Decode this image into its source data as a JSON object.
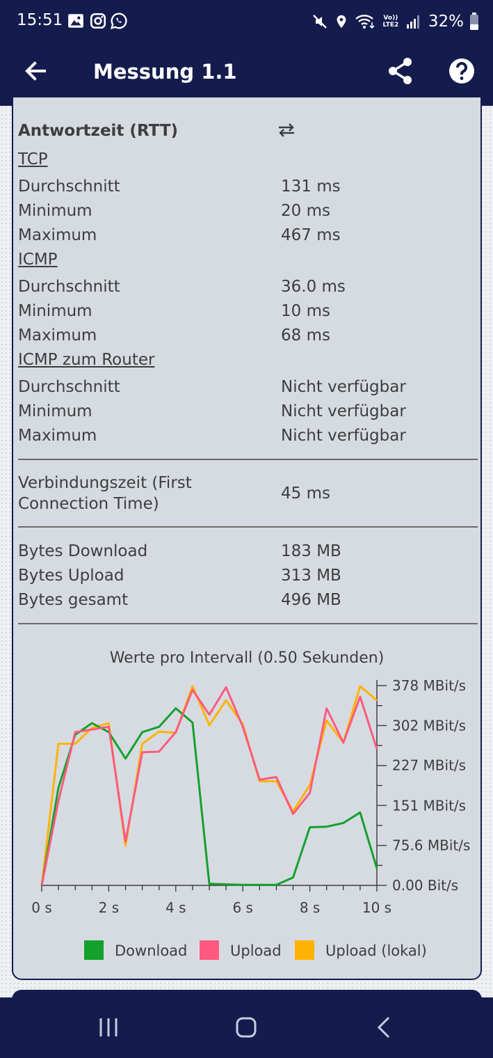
{
  "status_bar": {
    "time": "15:51",
    "volte_label": "Vo)) LTE2",
    "battery": "32%"
  },
  "app_bar": {
    "title": "Messung 1.1",
    "icons": [
      "back-arrow-icon",
      "share-icon",
      "help-icon"
    ]
  },
  "rtt": {
    "heading": "Antwortzeit (RTT)",
    "heading_icon": "swap-arrows-icon",
    "groups": [
      {
        "title": "TCP",
        "rows": [
          {
            "label": "Durchschnitt",
            "value": "131 ms"
          },
          {
            "label": "Minimum",
            "value": "20 ms"
          },
          {
            "label": "Maximum",
            "value": "467 ms"
          }
        ]
      },
      {
        "title": "ICMP",
        "rows": [
          {
            "label": "Durchschnitt",
            "value": "36.0 ms"
          },
          {
            "label": "Minimum",
            "value": "10 ms"
          },
          {
            "label": "Maximum",
            "value": "68 ms"
          }
        ]
      },
      {
        "title": "ICMP zum Router",
        "rows": [
          {
            "label": "Durchschnitt",
            "value": "Nicht verfügbar"
          },
          {
            "label": "Minimum",
            "value": "Nicht verfügbar"
          },
          {
            "label": "Maximum",
            "value": "Nicht verfügbar"
          }
        ]
      }
    ]
  },
  "connection": {
    "label_line1": "Verbindungszeit (First",
    "label_line2": "Connection Time)",
    "value": "45 ms"
  },
  "bytes": [
    {
      "label": "Bytes Download",
      "value": "183 MB"
    },
    {
      "label": "Bytes Upload",
      "value": "313 MB"
    },
    {
      "label": "Bytes gesamt",
      "value": "496 MB"
    }
  ],
  "chart_data": {
    "type": "line",
    "title": "Werte pro Intervall (0.50 Sekunden)",
    "xlim": [
      0,
      10
    ],
    "ylim": [
      0,
      378
    ],
    "x_ticks": [
      0,
      2,
      4,
      6,
      8,
      10
    ],
    "x_tick_labels": [
      "0 s",
      "2 s",
      "4 s",
      "6 s",
      "8 s",
      "10 s"
    ],
    "y_ticks": [
      0,
      75.6,
      151,
      227,
      302,
      378
    ],
    "y_tick_labels": [
      "0.00 Bit/s",
      "75.6 MBit/s",
      "151 MBit/s",
      "227 MBit/s",
      "302 MBit/s",
      "378 MBit/s"
    ],
    "legend_position": "bottom",
    "series": [
      {
        "name": "Download",
        "color": "#14a02c",
        "x": [
          0,
          0.5,
          1,
          1.5,
          2,
          2.5,
          3,
          3.5,
          4,
          4.5,
          5,
          5.5,
          6,
          6.5,
          7,
          7.5,
          8,
          8.5,
          9,
          9.5,
          10
        ],
        "y": [
          0,
          185,
          285,
          307,
          290,
          240,
          290,
          300,
          335,
          308,
          3,
          2,
          1,
          1,
          1,
          15,
          110,
          111,
          118,
          138,
          32
        ]
      },
      {
        "name": "Upload",
        "color": "#ff5a7e",
        "x": [
          0,
          0.5,
          1,
          1.5,
          2,
          2.5,
          3,
          3.5,
          4,
          4.5,
          5,
          5.5,
          6,
          6.5,
          7,
          7.5,
          8,
          8.5,
          9,
          9.5,
          10
        ],
        "y": [
          0,
          160,
          290,
          295,
          300,
          83,
          252,
          253,
          290,
          370,
          323,
          375,
          300,
          200,
          205,
          135,
          175,
          335,
          270,
          357,
          258
        ]
      },
      {
        "name": "Upload (lokal)",
        "color": "#ffb300",
        "x": [
          0,
          0.5,
          1,
          1.5,
          2,
          2.5,
          3,
          3.5,
          4,
          4.5,
          5,
          5.5,
          6,
          6.5,
          7,
          7.5,
          8,
          8.5,
          9,
          9.5,
          10
        ],
        "y": [
          0,
          268,
          268,
          298,
          307,
          75,
          268,
          291,
          289,
          377,
          303,
          350,
          305,
          197,
          197,
          140,
          190,
          312,
          270,
          377,
          350
        ]
      }
    ]
  },
  "nav_bar": {
    "icons": [
      "recent-apps-icon",
      "home-icon",
      "back-icon"
    ]
  }
}
